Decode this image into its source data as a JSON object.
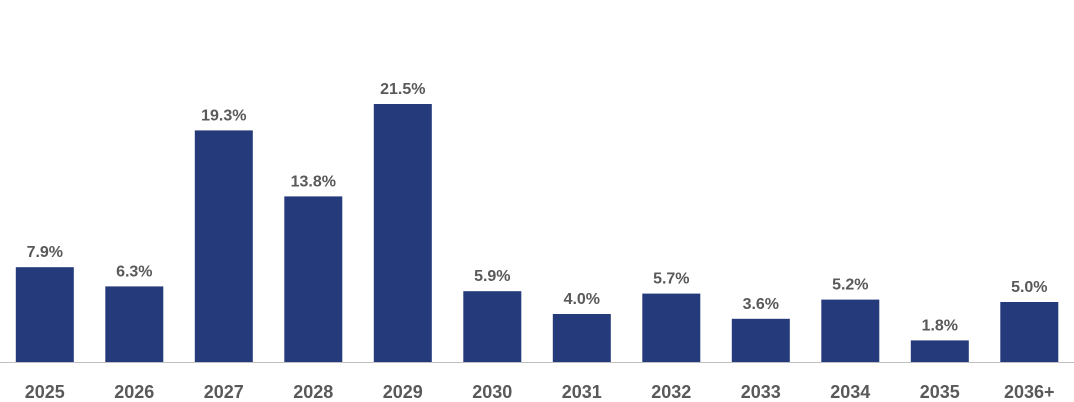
{
  "chart_data": {
    "type": "bar",
    "categories": [
      "2025",
      "2026",
      "2027",
      "2028",
      "2029",
      "2030",
      "2031",
      "2032",
      "2033",
      "2034",
      "2035",
      "2036+"
    ],
    "values": [
      7.9,
      6.3,
      19.3,
      13.8,
      21.5,
      5.9,
      4.0,
      5.7,
      3.6,
      5.2,
      1.8,
      5.0
    ],
    "value_labels": [
      "7.9%",
      "6.3%",
      "19.3%",
      "13.8%",
      "21.5%",
      "5.9%",
      "4.0%",
      "5.7%",
      "3.6%",
      "5.2%",
      "1.8%",
      "5.0%"
    ],
    "title": "",
    "xlabel": "",
    "ylabel": "",
    "ylim": [
      0,
      26
    ],
    "grid": false,
    "y_axis_visible": false,
    "colors": {
      "bar": "#243a7a",
      "label_text": "#595959",
      "baseline": "#bfbfbf"
    }
  }
}
